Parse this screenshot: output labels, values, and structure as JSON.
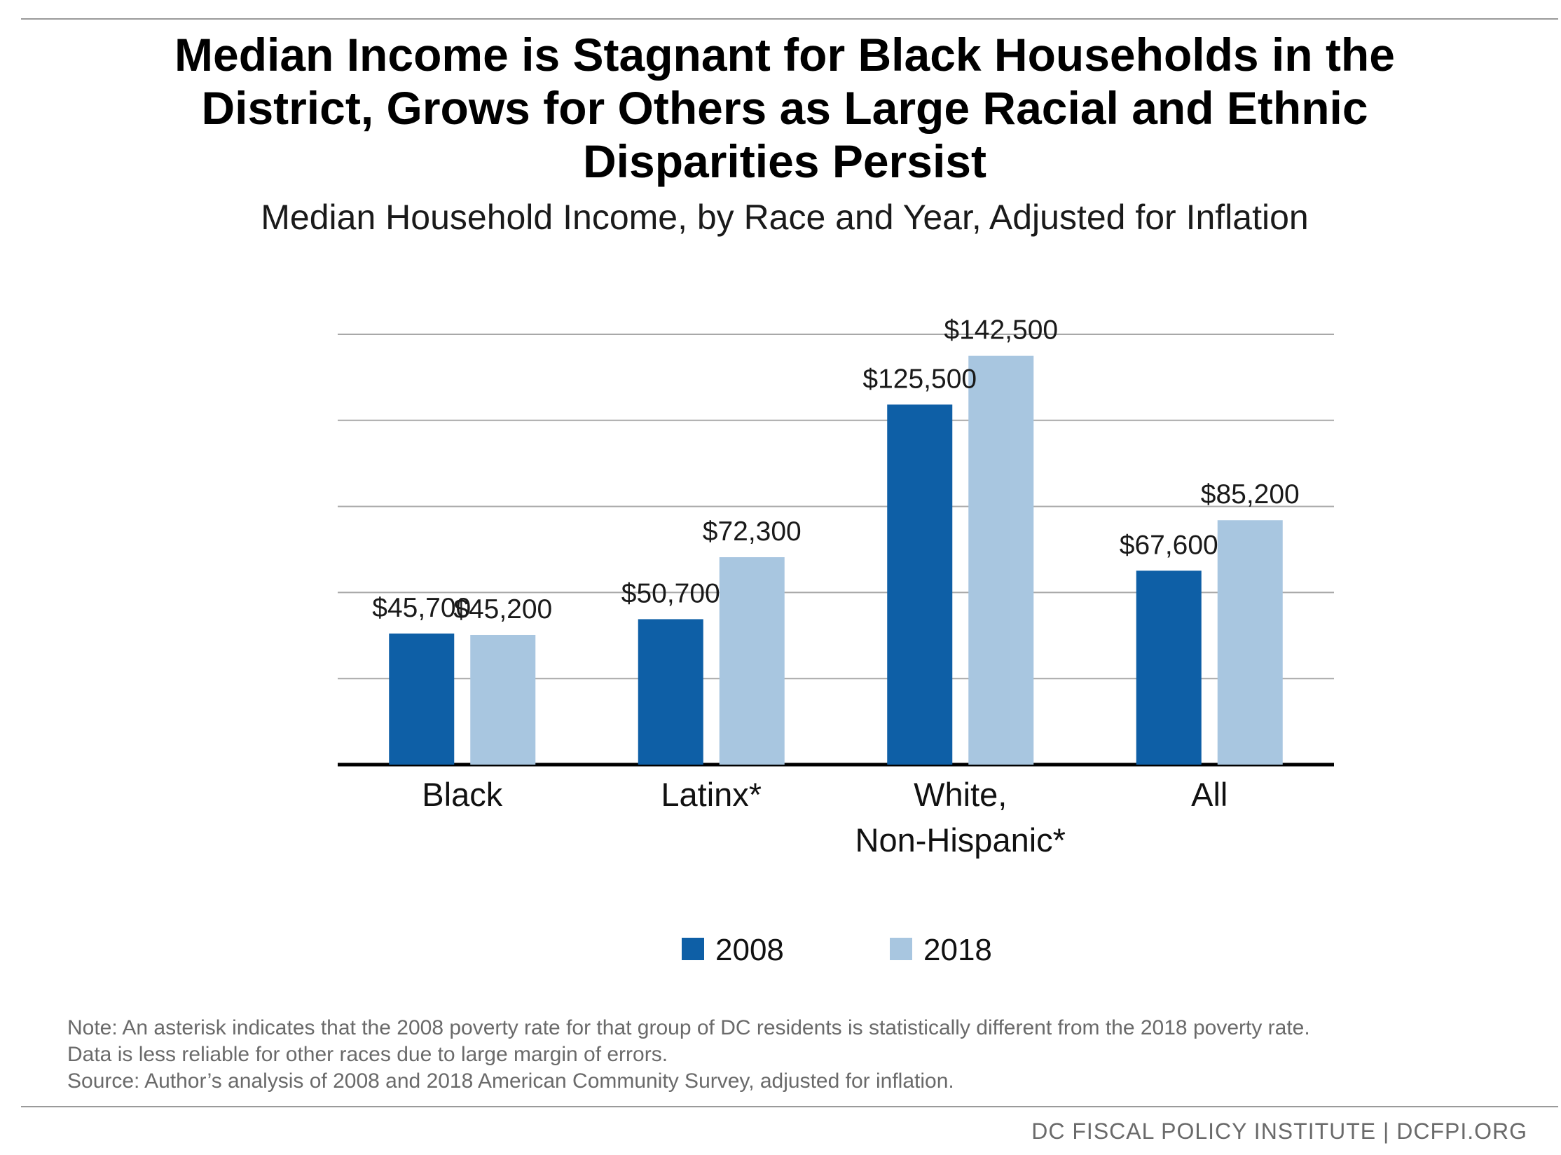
{
  "title_lines": [
    "Median Income is Stagnant for Black Households in the",
    "District, Grows for Others as Large Racial and Ethnic",
    "Disparities Persist"
  ],
  "subtitle": "Median Household Income, by Race and Year, Adjusted for Inflation",
  "chart_data": {
    "type": "bar",
    "title": "Median Income is Stagnant for Black Households in the District, Grows for Others as Large Racial and Ethnic Disparities Persist",
    "subtitle": "Median Household Income, by Race and Year, Adjusted for Inflation",
    "categories": [
      [
        "Black"
      ],
      [
        "Latinx*"
      ],
      [
        "White,",
        "Non-Hispanic*"
      ],
      [
        "All"
      ]
    ],
    "series": [
      {
        "name": "2008",
        "color": "#0e5fa6",
        "values": [
          45700,
          50700,
          125500,
          67600
        ],
        "labels": [
          "$45,700",
          "$50,700",
          "$125,500",
          "$67,600"
        ]
      },
      {
        "name": "2018",
        "color": "#a8c6e0",
        "values": [
          45200,
          72300,
          142500,
          85200
        ],
        "labels": [
          "$45,200",
          "$72,300",
          "$142,500",
          "$85,200"
        ]
      }
    ],
    "ylim": [
      0,
      150000
    ],
    "grid": true,
    "legend_position": "bottom-center",
    "xlabel": "",
    "ylabel": ""
  },
  "notes": [
    "Note: An asterisk indicates that the 2008 poverty rate for that group of DC residents is statistically different from the 2018 poverty rate.",
    "Data is less reliable for other races due to large margin of errors.",
    "Source: Author’s analysis of 2008 and 2018 American Community Survey, adjusted for inflation."
  ],
  "footer": "DC FISCAL POLICY INSTITUTE | DCFPI.ORG"
}
